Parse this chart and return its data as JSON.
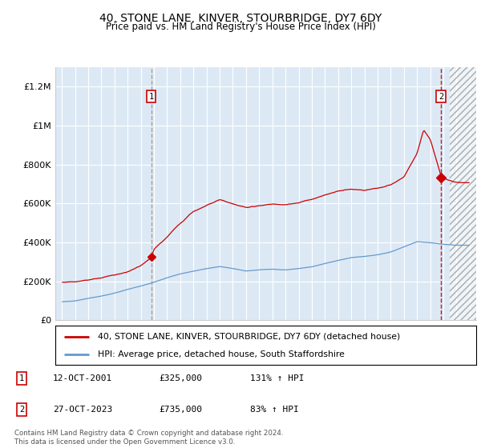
{
  "title": "40, STONE LANE, KINVER, STOURBRIDGE, DY7 6DY",
  "subtitle": "Price paid vs. HM Land Registry's House Price Index (HPI)",
  "title_fontsize": 10,
  "subtitle_fontsize": 8.5,
  "bg_color": "#dce9f5",
  "legend1": "40, STONE LANE, KINVER, STOURBRIDGE, DY7 6DY (detached house)",
  "legend2": "HPI: Average price, detached house, South Staffordshire",
  "sale1_label": "1",
  "sale1_date": "12-OCT-2001",
  "sale1_price": "£325,000",
  "sale1_hpi": "131% ↑ HPI",
  "sale2_label": "2",
  "sale2_date": "27-OCT-2023",
  "sale2_price": "£735,000",
  "sale2_hpi": "83% ↑ HPI",
  "footer": "Contains HM Land Registry data © Crown copyright and database right 2024.\nThis data is licensed under the Open Government Licence v3.0.",
  "red_color": "#cc0000",
  "blue_color": "#6699cc",
  "sale1_x": 2001.79,
  "sale2_x": 2023.82,
  "ylim": [
    0,
    1300000
  ],
  "yticks": [
    0,
    200000,
    400000,
    600000,
    800000,
    1000000,
    1200000
  ],
  "ytick_labels": [
    "£0",
    "£200K",
    "£400K",
    "£600K",
    "£800K",
    "£1M",
    "£1.2M"
  ],
  "xmin": 1994.5,
  "xmax": 2026.5,
  "hatch_start": 2024.5
}
